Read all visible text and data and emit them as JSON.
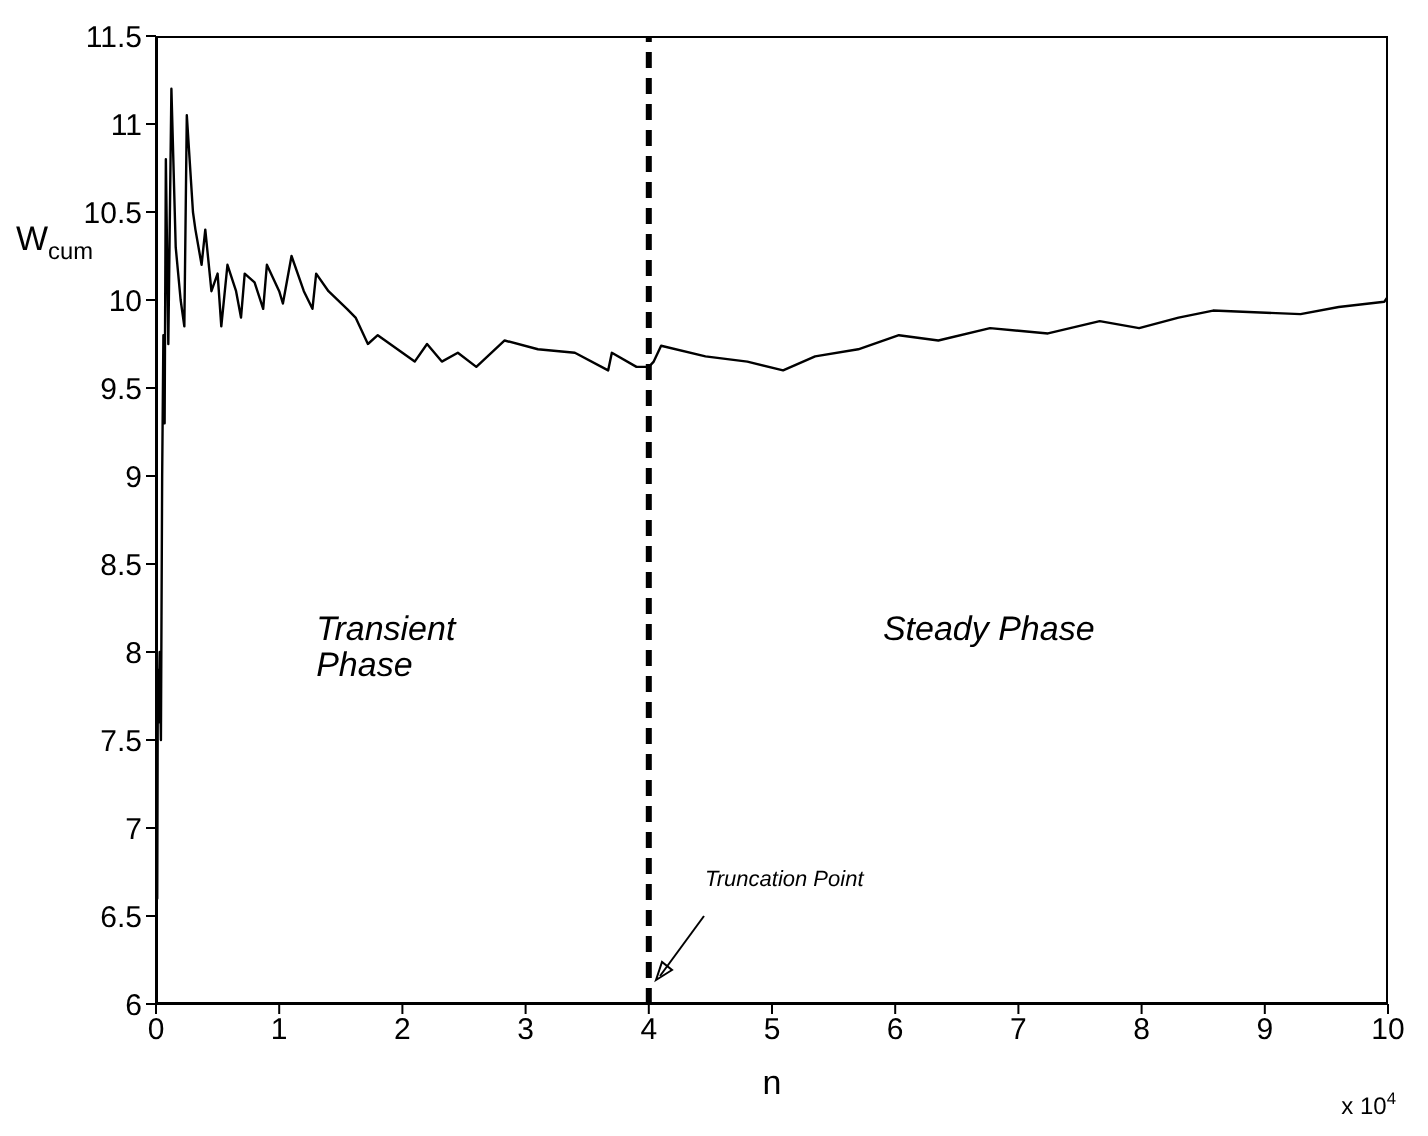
{
  "chart_data": {
    "type": "line",
    "xlabel": "n",
    "ylabel": "W$_{cum}$",
    "xlim": [
      0,
      10
    ],
    "xticks": [
      0,
      1,
      2,
      3,
      4,
      5,
      6,
      7,
      8,
      9,
      10
    ],
    "ylim": [
      6,
      11.5
    ],
    "yticks": [
      6,
      6.5,
      7,
      7.5,
      8,
      8.5,
      9,
      9.5,
      10,
      10.5,
      11,
      11.5
    ],
    "grid": false,
    "marker": "none",
    "line_style": "solid",
    "ref_lines": [
      {
        "axis": "x",
        "value": 4,
        "label": null,
        "color": "#000000",
        "line_style": "dashed"
      }
    ],
    "annotations": [
      "Transient Phase",
      "Steady Phase",
      {
        "text": "Truncation Point",
        "x": 4.05,
        "y": 6.12
      },
      "x 10$^{4}$"
    ],
    "series": [
      {
        "color": "#000000",
        "x": [
          0,
          0.005,
          0.01,
          0.015,
          0.02,
          0.03,
          0.04,
          0.05,
          0.06,
          0.07,
          0.08,
          0.1,
          0.125,
          0.16,
          0.2,
          0.23,
          0.25,
          0.3,
          0.32,
          0.37,
          0.4,
          0.45,
          0.5,
          0.53,
          0.58,
          0.65,
          0.69,
          0.72,
          0.8,
          0.87,
          0.9,
          1.0,
          1.03,
          1.1,
          1.2,
          1.27,
          1.3,
          1.4,
          1.55,
          1.62,
          1.72,
          1.8,
          2.0,
          2.1,
          2.2,
          2.32,
          2.45,
          2.6,
          2.83,
          3.1,
          3.4,
          3.67,
          3.7,
          3.9,
          4.0,
          4.04,
          4.1,
          4.46,
          4.8,
          5.09,
          5.35,
          5.7,
          6.03,
          6.35,
          6.77,
          7.24,
          7.66,
          7.98,
          8.3,
          8.58,
          9.29,
          9.6,
          9.97,
          10
        ],
        "values": [
          6.3,
          8.2,
          6.6,
          7.9,
          7.6,
          8.0,
          7.5,
          9.0,
          9.8,
          9.3,
          10.8,
          9.75,
          11.2,
          10.3,
          10.0,
          9.85,
          11.05,
          10.5,
          10.4,
          10.2,
          10.4,
          10.05,
          10.15,
          9.85,
          10.2,
          10.05,
          9.9,
          10.15,
          10.1,
          9.95,
          10.2,
          10.05,
          9.98,
          10.25,
          10.05,
          9.95,
          10.15,
          10.05,
          9.95,
          9.9,
          9.75,
          9.8,
          9.7,
          9.65,
          9.75,
          9.65,
          9.7,
          9.62,
          9.77,
          9.72,
          9.7,
          9.6,
          9.7,
          9.62,
          9.62,
          9.65,
          9.74,
          9.68,
          9.65,
          9.6,
          9.68,
          9.72,
          9.8,
          9.77,
          9.84,
          9.81,
          9.88,
          9.84,
          9.9,
          9.94,
          9.92,
          9.96,
          9.99,
          10.02
        ]
      }
    ]
  }
}
